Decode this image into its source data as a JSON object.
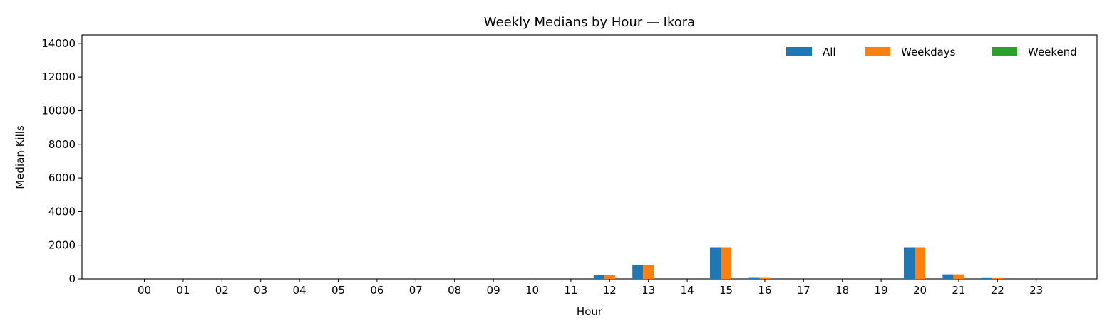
{
  "chart_data": {
    "type": "bar",
    "title": "Weekly Medians by Hour — Ikora",
    "xlabel": "Hour",
    "ylabel": "Median Kills",
    "categories": [
      "00",
      "01",
      "02",
      "03",
      "04",
      "05",
      "06",
      "07",
      "08",
      "09",
      "10",
      "11",
      "12",
      "13",
      "14",
      "15",
      "16",
      "17",
      "18",
      "19",
      "20",
      "21",
      "22",
      "23"
    ],
    "ylim": [
      0,
      14500
    ],
    "yticks": [
      0,
      2000,
      4000,
      6000,
      8000,
      10000,
      12000,
      14000
    ],
    "grid": false,
    "legend_position": "top-right",
    "series": [
      {
        "name": "All",
        "color": "#1f77b4",
        "values": [
          0,
          0,
          0,
          0,
          0,
          0,
          0,
          0,
          0,
          0,
          0,
          0,
          230,
          840,
          0,
          1880,
          60,
          0,
          0,
          0,
          1880,
          270,
          50,
          0
        ]
      },
      {
        "name": "Weekdays",
        "color": "#ff7f0e",
        "values": [
          0,
          0,
          0,
          0,
          0,
          0,
          0,
          0,
          0,
          0,
          0,
          0,
          230,
          840,
          0,
          1880,
          60,
          0,
          0,
          0,
          1880,
          270,
          50,
          0
        ]
      },
      {
        "name": "Weekend",
        "color": "#2ca02c",
        "values": [
          0,
          0,
          0,
          0,
          0,
          0,
          0,
          0,
          0,
          0,
          0,
          0,
          0,
          0,
          0,
          0,
          0,
          0,
          0,
          0,
          0,
          0,
          0,
          0
        ]
      }
    ]
  }
}
